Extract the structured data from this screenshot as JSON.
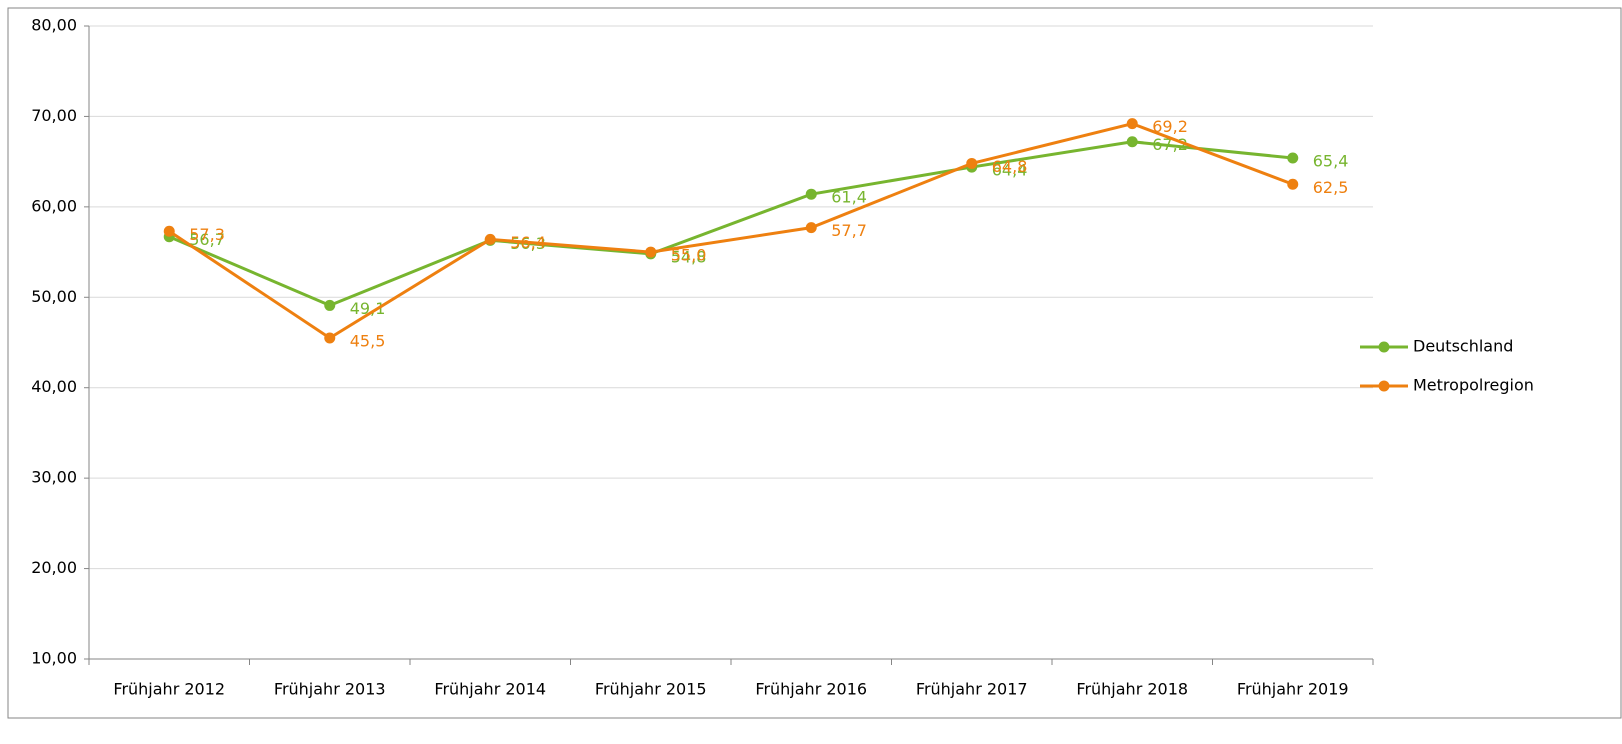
{
  "chart_data": {
    "type": "line",
    "categories": [
      "Frühjahr 2012",
      "Frühjahr 2013",
      "Frühjahr 2014",
      "Frühjahr 2015",
      "Frühjahr 2016",
      "Frühjahr 2017",
      "Frühjahr 2018",
      "Frühjahr 2019"
    ],
    "series": [
      {
        "name": "Deutschland",
        "color": "#77b52f",
        "values": [
          56.7,
          49.1,
          56.3,
          54.8,
          61.4,
          64.4,
          67.2,
          65.4
        ],
        "value_labels": [
          "56,7",
          "49,1",
          "56,3",
          "54,8",
          "61,4",
          "64,4",
          "67,2",
          "65,4"
        ]
      },
      {
        "name": "Metropolregion",
        "color": "#ee8010",
        "values": [
          57.3,
          45.5,
          56.4,
          55.0,
          57.7,
          64.8,
          69.2,
          62.5
        ],
        "value_labels": [
          "57,3",
          "45,5",
          "56,4",
          "55,0",
          "57,7",
          "64,8",
          "69,2",
          "62,5"
        ]
      }
    ],
    "ylim": [
      10,
      80
    ],
    "yticks": [
      {
        "value": 10,
        "label": "10,00"
      },
      {
        "value": 20,
        "label": "20,00"
      },
      {
        "value": 30,
        "label": "30,00"
      },
      {
        "value": 40,
        "label": "40,00"
      },
      {
        "value": 50,
        "label": "50,00"
      },
      {
        "value": 60,
        "label": "60,00"
      },
      {
        "value": 70,
        "label": "70,00"
      },
      {
        "value": 80,
        "label": "80,00"
      }
    ],
    "grid": true,
    "legend": "right"
  }
}
